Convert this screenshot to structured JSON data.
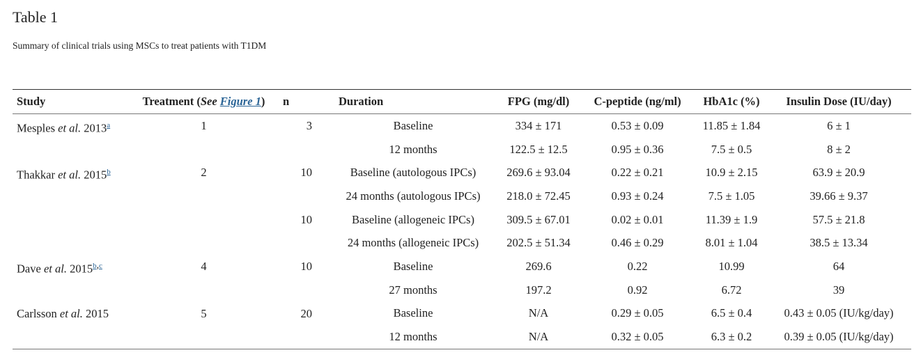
{
  "header": {
    "title": "Table 1",
    "caption": "Summary of clinical trials using MSCs to treat patients with T1DM"
  },
  "table": {
    "columns": {
      "study": "Study",
      "treatment": {
        "pre": "Treatment (",
        "see": "See",
        "link": "Figure 1",
        "post": ")"
      },
      "n": "n",
      "duration": "Duration",
      "fpg": "FPG (mg/dl)",
      "cpeptide": "C-peptide (ng/ml)",
      "hba1c": "HbA1c (%)",
      "insulin": "Insulin Dose (IU/day)"
    },
    "studies": [
      {
        "author": "Mesples",
        "etal": "et al.",
        "year": "2013",
        "notes": [
          "a"
        ],
        "treatment": "1",
        "arms": [
          {
            "n": "3",
            "rows": [
              [
                "Baseline",
                "334 ± 171",
                "0.53 ± 0.09",
                "11.85 ± 1.84",
                "6 ± 1"
              ],
              [
                "12 months",
                "122.5 ± 12.5",
                "0.95 ± 0.36",
                "7.5 ± 0.5",
                "8 ± 2"
              ]
            ]
          }
        ]
      },
      {
        "author": "Thakkar",
        "etal": "et al.",
        "year": "2015",
        "notes": [
          "b"
        ],
        "treatment": "2",
        "arms": [
          {
            "n": "10",
            "rows": [
              [
                "Baseline (autologous IPCs)",
                "269.6 ± 93.04",
                "0.22 ± 0.21",
                "10.9 ± 2.15",
                "63.9 ± 20.9"
              ],
              [
                "24 months (autologous IPCs)",
                "218.0 ± 72.45",
                "0.93 ± 0.24",
                "7.5 ± 1.05",
                "39.66 ± 9.37"
              ]
            ]
          },
          {
            "n": "10",
            "rows": [
              [
                "Baseline (allogeneic IPCs)",
                "309.5 ± 67.01",
                "0.02 ± 0.01",
                "11.39 ± 1.9",
                "57.5 ± 21.8"
              ],
              [
                "24 months (allogeneic IPCs)",
                "202.5 ± 51.34",
                "0.46 ± 0.29",
                "8.01 ± 1.04",
                "38.5 ± 13.34"
              ]
            ]
          }
        ]
      },
      {
        "author": "Dave",
        "etal": "et al.",
        "year": "2015",
        "notes": [
          "b",
          "c"
        ],
        "note_separator": ",",
        "treatment": "4",
        "arms": [
          {
            "n": "10",
            "rows": [
              [
                "Baseline",
                "269.6",
                "0.22",
                "10.99",
                "64"
              ],
              [
                "27 months",
                "197.2",
                "0.92",
                "6.72",
                "39"
              ]
            ]
          }
        ]
      },
      {
        "author": "Carlsson",
        "etal": "et al.",
        "year": "2015",
        "treatment": "5",
        "arms": [
          {
            "n": "20",
            "rows": [
              [
                "Baseline",
                "N/A",
                "0.29 ± 0.05",
                "6.5 ± 0.4",
                "0.43 ± 0.05 (IU/kg/day)"
              ],
              [
                "12 months",
                "N/A",
                "0.32 ± 0.05",
                "6.3 ± 0.2",
                "0.39 ± 0.05 (IU/kg/day)"
              ]
            ]
          }
        ]
      }
    ]
  }
}
